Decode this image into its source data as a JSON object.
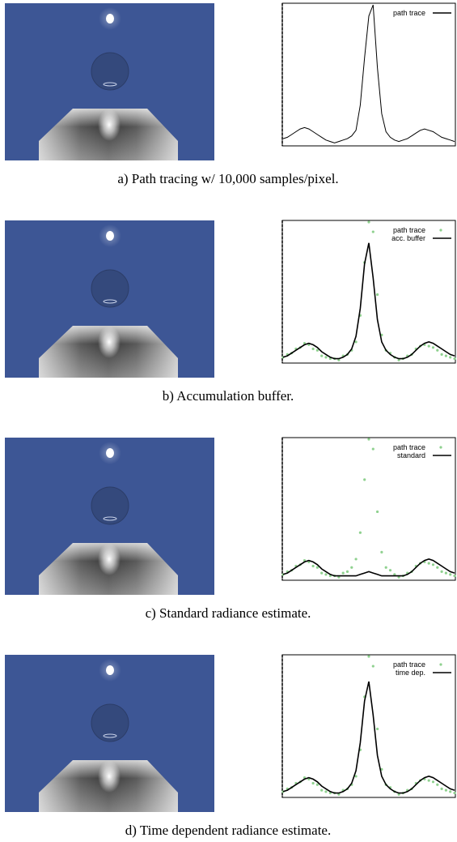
{
  "panels": [
    {
      "caption": "a) Path tracing w/ 10,000 samples/pixel.",
      "plot": {
        "series": [
          {
            "name": "path trace",
            "style": "line",
            "color": "#000000",
            "values": [
              4,
              5,
              7,
              9,
              11,
              12,
              11,
              9,
              7,
              5,
              3,
              2,
              1,
              2,
              3,
              4,
              6,
              10,
              28,
              62,
              92,
              100,
              55,
              22,
              9,
              5,
              3,
              2,
              3,
              4,
              6,
              8,
              10,
              11,
              10,
              9,
              7,
              5,
              4,
              3,
              2
            ]
          }
        ]
      }
    },
    {
      "caption": "b) Accumulation buffer.",
      "plot": {
        "series": [
          {
            "name": "path trace",
            "style": "points",
            "color": "#8fd18f",
            "values": [
              3,
              5,
              6,
              9,
              10,
              13,
              12,
              9,
              8,
              4,
              3,
              2,
              2,
              1,
              4,
              5,
              8,
              14,
              33,
              71,
              100,
              93,
              48,
              19,
              8,
              6,
              3,
              1,
              2,
              4,
              5,
              9,
              11,
              12,
              11,
              10,
              8,
              5,
              4,
              3,
              2
            ]
          },
          {
            "name": "acc. buffer",
            "style": "line",
            "color": "#000000",
            "values": [
              3,
              4,
              6,
              8,
              10,
              12,
              13,
              12,
              10,
              7,
              5,
              3,
              2,
              2,
              3,
              5,
              9,
              18,
              38,
              70,
              85,
              60,
              30,
              14,
              8,
              5,
              3,
              2,
              2,
              3,
              5,
              8,
              11,
              13,
              14,
              13,
              11,
              9,
              7,
              5,
              4
            ]
          }
        ]
      }
    },
    {
      "caption": "c) Standard radiance estimate.",
      "plot": {
        "series": [
          {
            "name": "path trace",
            "style": "points",
            "color": "#8fd18f",
            "values": [
              3,
              5,
              6,
              9,
              10,
              13,
              12,
              9,
              8,
              4,
              3,
              2,
              2,
              1,
              4,
              5,
              8,
              14,
              33,
              71,
              100,
              93,
              48,
              19,
              8,
              6,
              3,
              1,
              2,
              4,
              5,
              9,
              11,
              12,
              11,
              10,
              8,
              5,
              4,
              3,
              2
            ]
          },
          {
            "name": "standard",
            "style": "line",
            "color": "#000000",
            "values": [
              3,
              4,
              6,
              8,
              10,
              12,
              13,
              12,
              10,
              7,
              5,
              3,
              2,
              2,
              2,
              2,
              2,
              2,
              3,
              4,
              5,
              4,
              3,
              2,
              2,
              2,
              2,
              2,
              2,
              3,
              5,
              8,
              11,
              13,
              14,
              13,
              11,
              9,
              7,
              5,
              4
            ]
          }
        ]
      }
    },
    {
      "caption": "d) Time dependent radiance estimate.",
      "plot": {
        "series": [
          {
            "name": "path trace",
            "style": "points",
            "color": "#8fd18f",
            "values": [
              3,
              5,
              6,
              9,
              10,
              13,
              12,
              9,
              8,
              4,
              3,
              2,
              2,
              1,
              4,
              5,
              8,
              14,
              33,
              71,
              100,
              93,
              48,
              19,
              8,
              6,
              3,
              1,
              2,
              4,
              5,
              9,
              11,
              12,
              11,
              10,
              8,
              5,
              4,
              3,
              2
            ]
          },
          {
            "name": "time dep.",
            "style": "line",
            "color": "#000000",
            "values": [
              3,
              4,
              6,
              8,
              10,
              12,
              13,
              12,
              10,
              7,
              5,
              3,
              2,
              2,
              3,
              5,
              9,
              18,
              38,
              68,
              82,
              58,
              29,
              14,
              8,
              5,
              3,
              2,
              2,
              3,
              5,
              8,
              11,
              13,
              14,
              13,
              11,
              9,
              7,
              5,
              4
            ]
          }
        ]
      }
    }
  ]
}
